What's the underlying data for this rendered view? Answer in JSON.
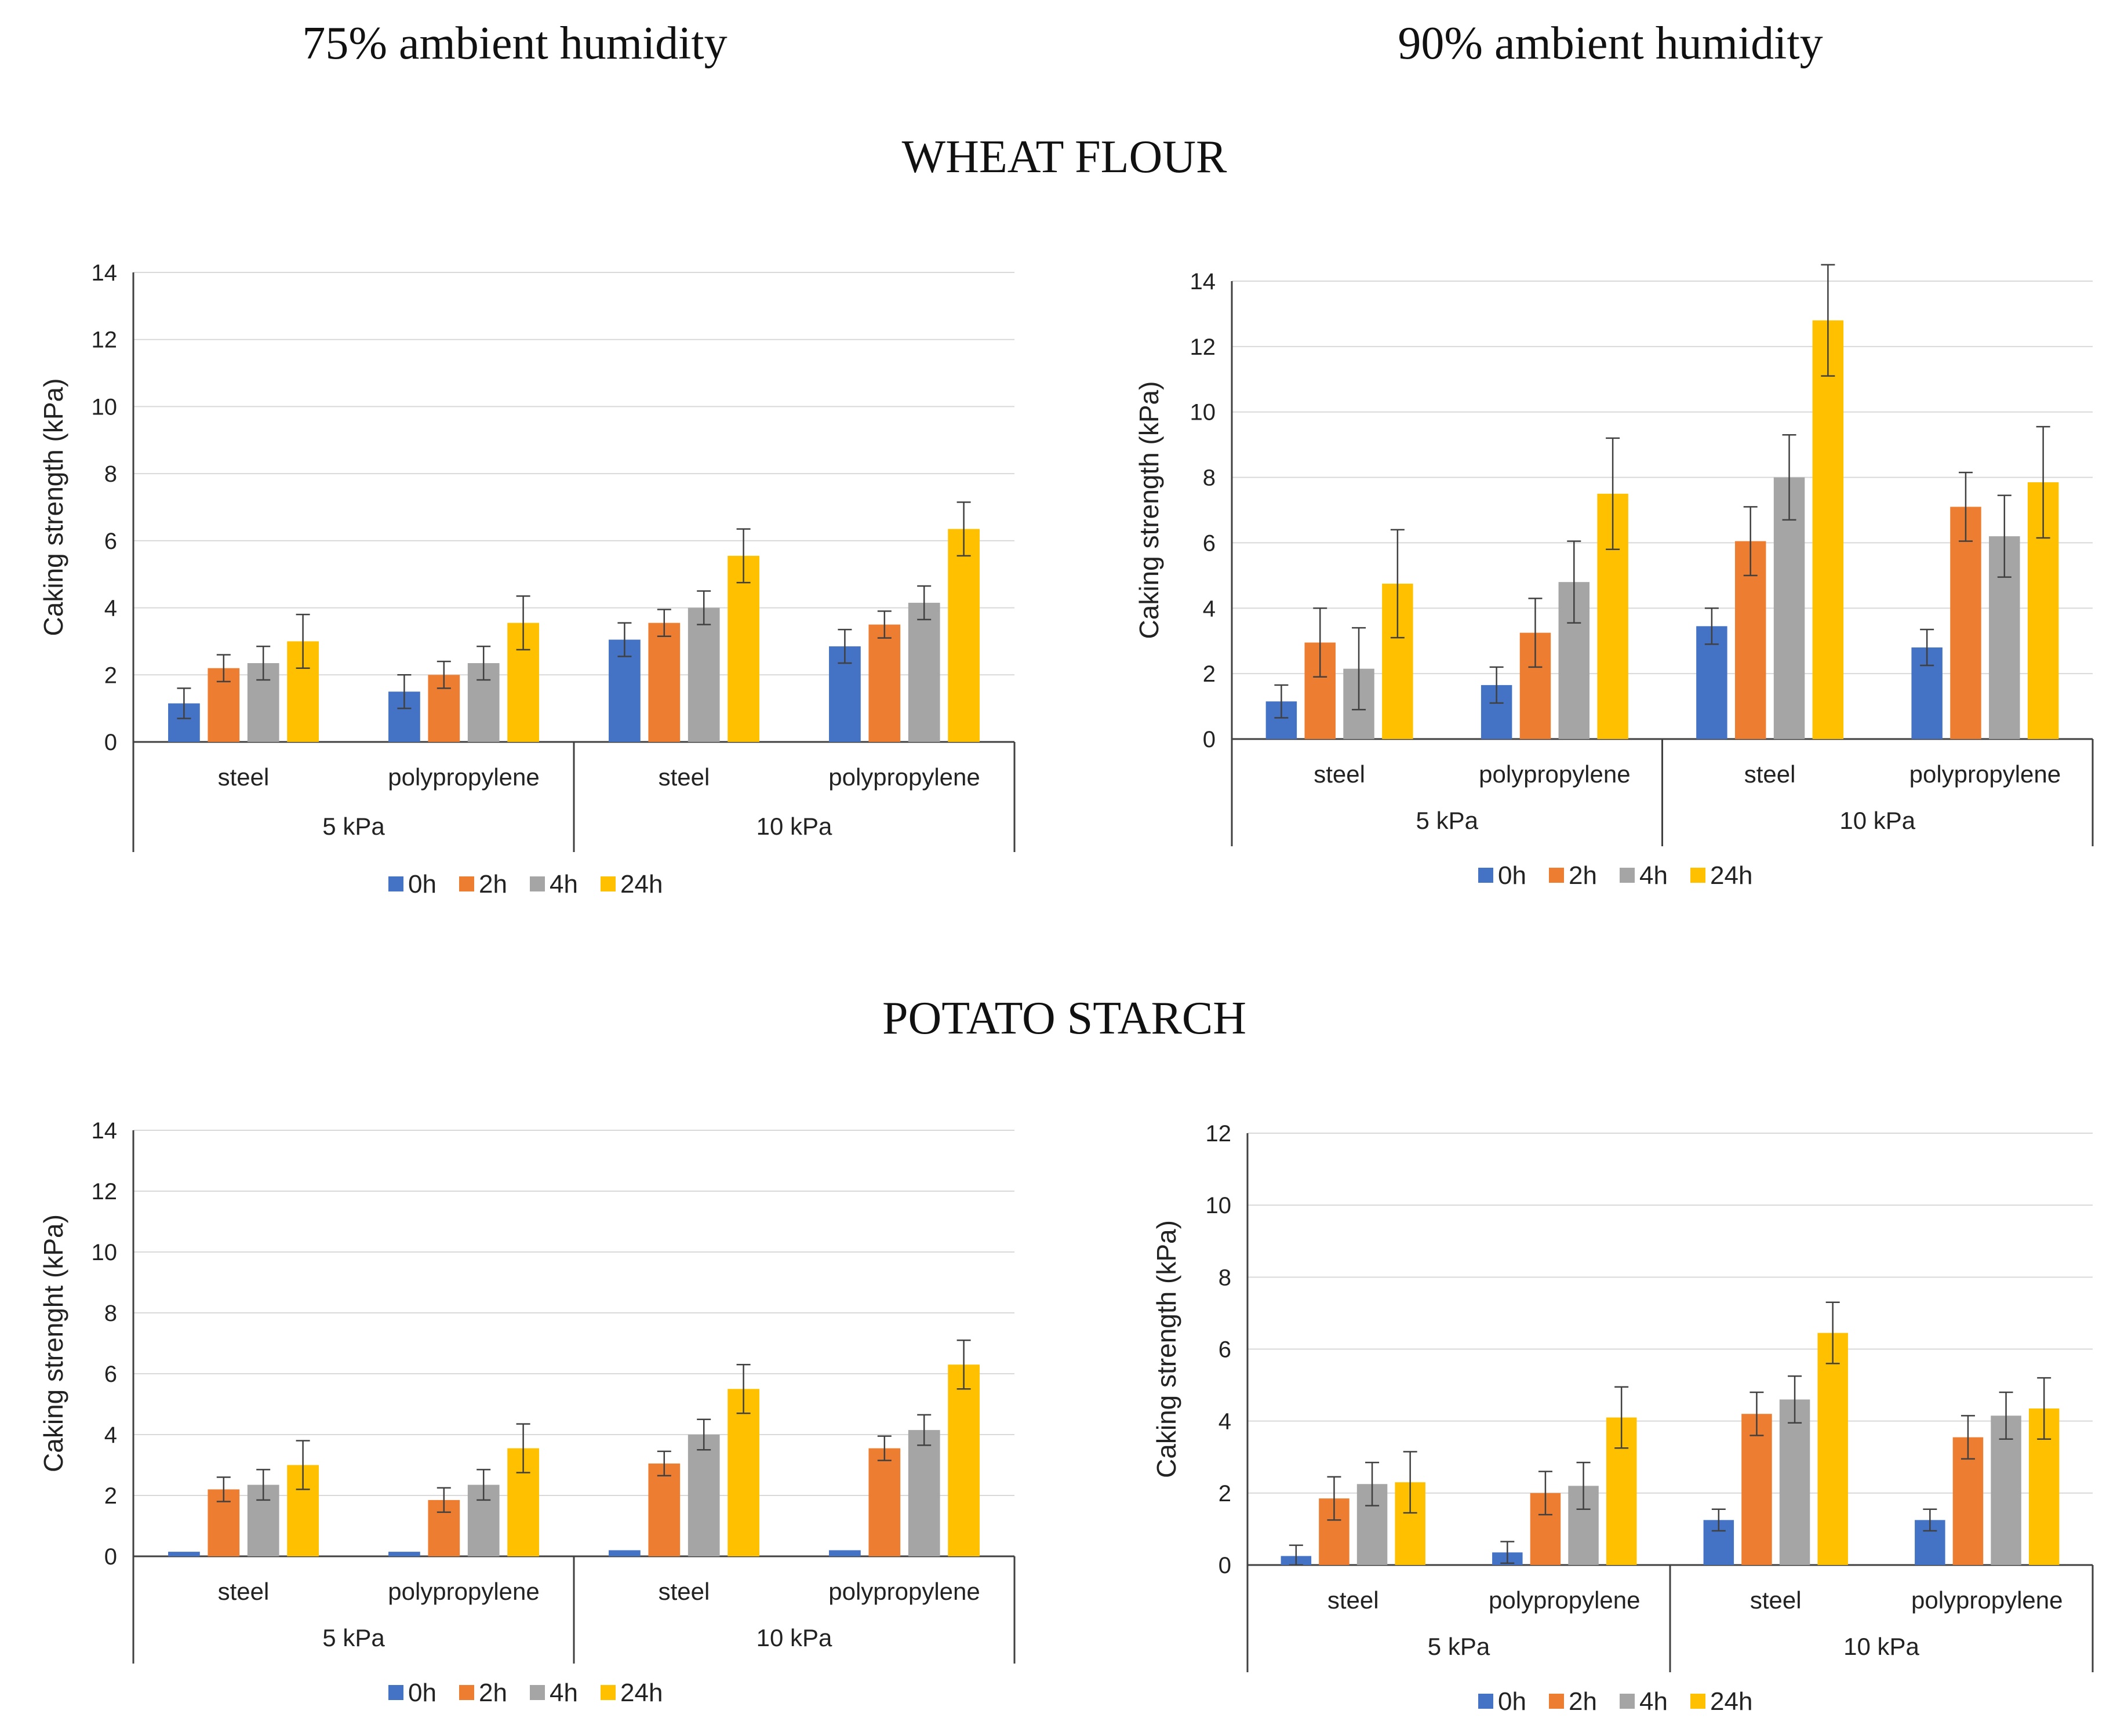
{
  "titles": {
    "left": "75% ambient humidity",
    "right": "90% ambient humidity",
    "top_section": "WHEAT FLOUR",
    "bottom_section": "POTATO STARCH"
  },
  "colors": {
    "0h": "#4472C4",
    "2h": "#ED7D31",
    "4h": "#A5A5A5",
    "24h": "#FFC000",
    "grid": "#D9D9D9",
    "axis": "#404040"
  },
  "chart_data": [
    {
      "id": "wheat-75",
      "type": "bar",
      "ylabel": "Caking strength (kPa)",
      "ylim": [
        0,
        14
      ],
      "ytick_step": 2,
      "grid": true,
      "legend": "bottom",
      "categories": [
        "steel",
        "polypropylene",
        "steel",
        "polypropylene"
      ],
      "groups": [
        {
          "label": "5 kPa",
          "span": 2
        },
        {
          "label": "10 kPa",
          "span": 2
        }
      ],
      "series": [
        {
          "name": "0h",
          "values": [
            1.15,
            1.5,
            3.05,
            2.85
          ],
          "errors": [
            0.45,
            0.5,
            0.5,
            0.5
          ]
        },
        {
          "name": "2h",
          "values": [
            2.2,
            2.0,
            3.55,
            3.5
          ],
          "errors": [
            0.4,
            0.4,
            0.4,
            0.4
          ]
        },
        {
          "name": "4h",
          "values": [
            2.35,
            2.35,
            4.0,
            4.15
          ],
          "errors": [
            0.5,
            0.5,
            0.5,
            0.5
          ]
        },
        {
          "name": "24h",
          "values": [
            3.0,
            3.55,
            5.55,
            6.35
          ],
          "errors": [
            0.8,
            0.8,
            0.8,
            0.8
          ]
        }
      ]
    },
    {
      "id": "wheat-90",
      "type": "bar",
      "ylabel": "Caking strength (kPa)",
      "ylim": [
        0,
        14
      ],
      "ytick_step": 2,
      "grid": true,
      "legend": "bottom",
      "categories": [
        "steel",
        "polypropylene",
        "steel",
        "polypropylene"
      ],
      "groups": [
        {
          "label": "5 kPa",
          "span": 2
        },
        {
          "label": "10 kPa",
          "span": 2
        }
      ],
      "series": [
        {
          "name": "0h",
          "values": [
            1.15,
            1.65,
            3.45,
            2.8
          ],
          "errors": [
            0.5,
            0.55,
            0.55,
            0.55
          ]
        },
        {
          "name": "2h",
          "values": [
            2.95,
            3.25,
            6.05,
            7.1
          ],
          "errors": [
            1.05,
            1.05,
            1.05,
            1.05
          ]
        },
        {
          "name": "4h",
          "values": [
            2.15,
            4.8,
            8.0,
            6.2
          ],
          "errors": [
            1.25,
            1.25,
            1.3,
            1.25
          ]
        },
        {
          "name": "24h",
          "values": [
            4.75,
            7.5,
            12.8,
            7.85
          ],
          "errors": [
            1.65,
            1.7,
            1.7,
            1.7
          ]
        }
      ]
    },
    {
      "id": "potato-75",
      "type": "bar",
      "ylabel": "Caking strenght (kPa)",
      "ylim": [
        0,
        14
      ],
      "ytick_step": 2,
      "grid": true,
      "legend": "bottom",
      "categories": [
        "steel",
        "polypropylene",
        "steel",
        "polypropylene"
      ],
      "groups": [
        {
          "label": "5 kPa",
          "span": 2
        },
        {
          "label": "10 kPa",
          "span": 2
        }
      ],
      "series": [
        {
          "name": "0h",
          "values": [
            0.15,
            0.15,
            0.2,
            0.2
          ],
          "errors": [
            0,
            0,
            0,
            0
          ]
        },
        {
          "name": "2h",
          "values": [
            2.2,
            1.85,
            3.05,
            3.55
          ],
          "errors": [
            0.4,
            0.4,
            0.4,
            0.4
          ]
        },
        {
          "name": "4h",
          "values": [
            2.35,
            2.35,
            4.0,
            4.15
          ],
          "errors": [
            0.5,
            0.5,
            0.5,
            0.5
          ]
        },
        {
          "name": "24h",
          "values": [
            3.0,
            3.55,
            5.5,
            6.3
          ],
          "errors": [
            0.8,
            0.8,
            0.8,
            0.8
          ]
        }
      ]
    },
    {
      "id": "potato-90",
      "type": "bar",
      "ylabel": "Caking strength (kPa)",
      "ylim": [
        0,
        12
      ],
      "ytick_step": 2,
      "grid": true,
      "legend": "bottom",
      "categories": [
        "steel",
        "polypropylene",
        "steel",
        "polypropylene"
      ],
      "groups": [
        {
          "label": "5 kPa",
          "span": 2
        },
        {
          "label": "10 kPa",
          "span": 2
        }
      ],
      "series": [
        {
          "name": "0h",
          "values": [
            0.25,
            0.35,
            1.25,
            1.25
          ],
          "errors": [
            0.3,
            0.3,
            0.3,
            0.3
          ]
        },
        {
          "name": "2h",
          "values": [
            1.85,
            2.0,
            4.2,
            3.55
          ],
          "errors": [
            0.6,
            0.6,
            0.6,
            0.6
          ]
        },
        {
          "name": "4h",
          "values": [
            2.25,
            2.2,
            4.6,
            4.15
          ],
          "errors": [
            0.6,
            0.65,
            0.65,
            0.65
          ]
        },
        {
          "name": "24h",
          "values": [
            2.3,
            4.1,
            6.45,
            4.35
          ],
          "errors": [
            0.85,
            0.85,
            0.85,
            0.85
          ]
        }
      ]
    }
  ]
}
